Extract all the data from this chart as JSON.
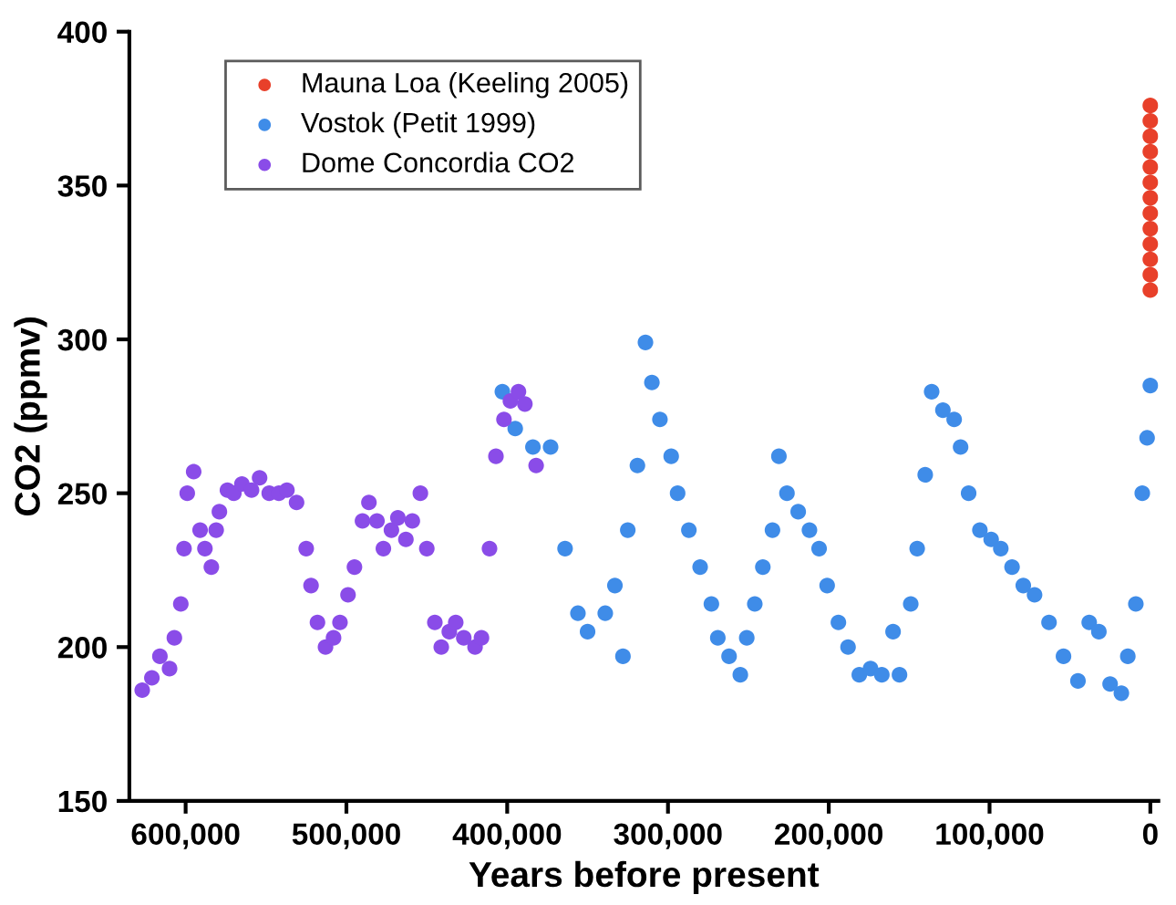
{
  "chart_data": {
    "type": "scatter",
    "xlabel": "Years before present",
    "ylabel": "CO2 (ppmv)",
    "xlim": [
      635000,
      -5000
    ],
    "ylim": [
      150,
      400
    ],
    "xticks": [
      {
        "value": 600000,
        "label": "600,000"
      },
      {
        "value": 500000,
        "label": "500,000"
      },
      {
        "value": 400000,
        "label": "400,000"
      },
      {
        "value": 300000,
        "label": "300,000"
      },
      {
        "value": 200000,
        "label": "200,000"
      },
      {
        "value": 100000,
        "label": "100,000"
      },
      0
    ],
    "yticks": [
      150,
      200,
      250,
      300,
      350,
      400
    ],
    "grid": false,
    "legend": "top left",
    "marker": "circle",
    "series": [
      {
        "name": "Mauna Loa (Keeling 2005)",
        "color": "#e8402a",
        "x": [
          0,
          0,
          0,
          0,
          0,
          0,
          0,
          0,
          0,
          0,
          0,
          0,
          0
        ],
        "values": [
          316,
          321,
          326,
          331,
          336,
          341,
          346,
          351,
          356,
          361,
          366,
          371,
          376
        ]
      },
      {
        "name": "Vostok (Petit 1999)",
        "color": "#3f8ce8",
        "x": [
          403000,
          395000,
          384000,
          373000,
          364000,
          356000,
          350000,
          339000,
          333000,
          328000,
          325000,
          319000,
          314000,
          310000,
          305000,
          298000,
          294000,
          287000,
          280000,
          273000,
          269000,
          262000,
          255000,
          251000,
          246000,
          241000,
          235000,
          231000,
          226000,
          219000,
          212000,
          206000,
          201000,
          194000,
          188000,
          181000,
          174000,
          167000,
          160000,
          156000,
          149000,
          145000,
          140000,
          136000,
          129000,
          122000,
          118000,
          113000,
          106000,
          99000,
          93000,
          86000,
          79000,
          72000,
          63000,
          54000,
          45000,
          38000,
          32000,
          25000,
          18000,
          14000,
          9000,
          5000,
          2000,
          0
        ],
        "values": [
          283,
          271,
          265,
          265,
          232,
          211,
          205,
          211,
          220,
          197,
          238,
          259,
          299,
          286,
          274,
          262,
          250,
          238,
          226,
          214,
          203,
          197,
          191,
          203,
          214,
          226,
          238,
          262,
          250,
          244,
          238,
          232,
          220,
          208,
          200,
          191,
          193,
          191,
          205,
          191,
          214,
          232,
          256,
          283,
          277,
          274,
          265,
          250,
          238,
          235,
          232,
          226,
          220,
          217,
          208,
          197,
          189,
          208,
          205,
          188,
          185,
          197,
          214,
          250,
          268,
          285
        ]
      },
      {
        "name": "Dome Concordia CO2",
        "color": "#8a4ce8",
        "x": [
          627000,
          621000,
          616000,
          610000,
          607000,
          603000,
          601000,
          599000,
          595000,
          591000,
          588000,
          584000,
          581000,
          579000,
          574000,
          570000,
          565000,
          559000,
          554000,
          548000,
          542000,
          537000,
          531000,
          525000,
          522000,
          518000,
          513000,
          508000,
          504000,
          499000,
          495000,
          490000,
          486000,
          481000,
          477000,
          472000,
          468000,
          463000,
          459000,
          454000,
          450000,
          445000,
          441000,
          436000,
          432000,
          427000,
          420000,
          416000,
          411000,
          407000,
          402000,
          398000,
          393000,
          389000,
          382000
        ],
        "values": [
          186,
          190,
          197,
          193,
          203,
          214,
          232,
          250,
          257,
          238,
          232,
          226,
          238,
          244,
          251,
          250,
          253,
          251,
          255,
          250,
          250,
          251,
          247,
          232,
          220,
          208,
          200,
          203,
          208,
          217,
          226,
          241,
          247,
          241,
          232,
          238,
          242,
          235,
          241,
          250,
          232,
          208,
          200,
          205,
          208,
          203,
          200,
          203,
          232,
          262,
          274,
          280,
          283,
          279,
          259
        ]
      }
    ]
  }
}
